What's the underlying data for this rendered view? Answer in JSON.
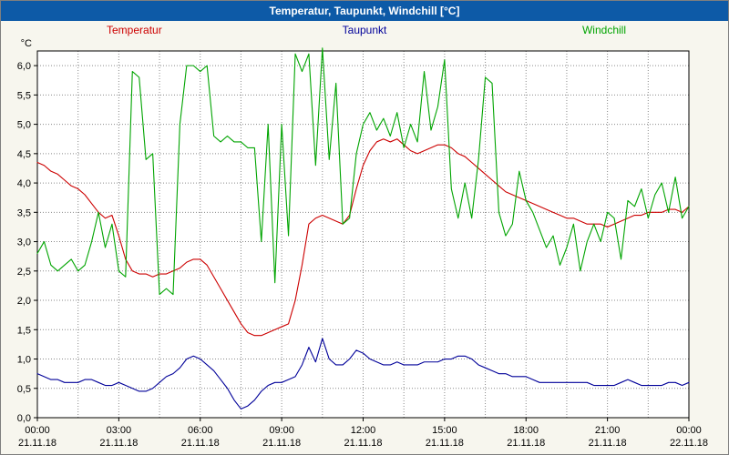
{
  "window": {
    "title": "Temperatur, Taupunkt, Windchill [°C]"
  },
  "chart_data": {
    "type": "line",
    "title": "Temperatur, Taupunkt, Windchill [°C]",
    "xlabel": "",
    "ylabel": "°C",
    "xlim": [
      0,
      24
    ],
    "ylim": [
      0,
      6.25
    ],
    "grid": "dotted",
    "legend_position": "top",
    "plot_bg": "#ffffff",
    "x_step_hours": 0.25,
    "y_ticks": [
      "0,0",
      "0,5",
      "1,0",
      "1,5",
      "2,0",
      "2,5",
      "3,0",
      "3,5",
      "4,0",
      "4,5",
      "5,0",
      "5,5",
      "6,0"
    ],
    "x_ticks": [
      {
        "time": "00:00",
        "date": "21.11.18"
      },
      {
        "time": "03:00",
        "date": "21.11.18"
      },
      {
        "time": "06:00",
        "date": "21.11.18"
      },
      {
        "time": "09:00",
        "date": "21.11.18"
      },
      {
        "time": "12:00",
        "date": "21.11.18"
      },
      {
        "time": "15:00",
        "date": "21.11.18"
      },
      {
        "time": "18:00",
        "date": "21.11.18"
      },
      {
        "time": "21:00",
        "date": "21.11.18"
      },
      {
        "time": "00:00",
        "date": "22.11.18"
      }
    ],
    "series": [
      {
        "name": "Temperatur",
        "color": "#cc0000",
        "values": [
          4.35,
          4.3,
          4.2,
          4.15,
          4.05,
          3.95,
          3.9,
          3.8,
          3.65,
          3.5,
          3.4,
          3.45,
          3.1,
          2.7,
          2.5,
          2.45,
          2.45,
          2.4,
          2.45,
          2.45,
          2.5,
          2.55,
          2.65,
          2.7,
          2.7,
          2.6,
          2.4,
          2.2,
          2.0,
          1.8,
          1.6,
          1.45,
          1.4,
          1.4,
          1.45,
          1.5,
          1.55,
          1.6,
          2.0,
          2.6,
          3.3,
          3.4,
          3.45,
          3.4,
          3.35,
          3.3,
          3.45,
          3.9,
          4.3,
          4.55,
          4.7,
          4.75,
          4.7,
          4.75,
          4.65,
          4.55,
          4.5,
          4.55,
          4.6,
          4.65,
          4.65,
          4.6,
          4.5,
          4.45,
          4.35,
          4.25,
          4.15,
          4.05,
          3.95,
          3.85,
          3.8,
          3.75,
          3.7,
          3.65,
          3.6,
          3.55,
          3.5,
          3.45,
          3.4,
          3.4,
          3.35,
          3.3,
          3.3,
          3.3,
          3.25,
          3.3,
          3.35,
          3.4,
          3.45,
          3.45,
          3.5,
          3.5,
          3.5,
          3.55,
          3.55,
          3.5,
          3.6
        ]
      },
      {
        "name": "Taupunkt",
        "color": "#000099",
        "values": [
          0.75,
          0.7,
          0.65,
          0.65,
          0.6,
          0.6,
          0.6,
          0.65,
          0.65,
          0.6,
          0.55,
          0.55,
          0.6,
          0.55,
          0.5,
          0.45,
          0.45,
          0.5,
          0.6,
          0.7,
          0.75,
          0.85,
          1.0,
          1.05,
          1.0,
          0.9,
          0.8,
          0.65,
          0.5,
          0.3,
          0.15,
          0.2,
          0.3,
          0.45,
          0.55,
          0.6,
          0.6,
          0.65,
          0.7,
          0.9,
          1.2,
          0.95,
          1.35,
          1.0,
          0.9,
          0.9,
          1.0,
          1.15,
          1.1,
          1.0,
          0.95,
          0.9,
          0.9,
          0.95,
          0.9,
          0.9,
          0.9,
          0.95,
          0.95,
          0.95,
          1.0,
          1.0,
          1.05,
          1.05,
          1.0,
          0.9,
          0.85,
          0.8,
          0.75,
          0.75,
          0.7,
          0.7,
          0.7,
          0.65,
          0.6,
          0.6,
          0.6,
          0.6,
          0.6,
          0.6,
          0.6,
          0.6,
          0.55,
          0.55,
          0.55,
          0.55,
          0.6,
          0.65,
          0.6,
          0.55,
          0.55,
          0.55,
          0.55,
          0.6,
          0.6,
          0.55,
          0.6
        ]
      },
      {
        "name": "Windchill",
        "color": "#00a400",
        "values": [
          2.8,
          3.0,
          2.6,
          2.5,
          2.6,
          2.7,
          2.5,
          2.6,
          3.0,
          3.5,
          2.9,
          3.3,
          2.5,
          2.4,
          5.9,
          5.8,
          4.4,
          4.5,
          2.1,
          2.2,
          2.1,
          5.0,
          6.0,
          6.0,
          5.9,
          6.0,
          4.8,
          4.7,
          4.8,
          4.7,
          4.7,
          4.6,
          4.6,
          3.0,
          5.0,
          2.3,
          5.0,
          3.1,
          6.2,
          5.9,
          6.2,
          4.3,
          6.3,
          4.4,
          5.7,
          3.3,
          3.4,
          4.5,
          5.0,
          5.2,
          4.9,
          5.1,
          4.8,
          5.2,
          4.6,
          5.0,
          4.7,
          5.9,
          4.9,
          5.3,
          6.1,
          3.9,
          3.4,
          4.0,
          3.4,
          4.4,
          5.8,
          5.7,
          3.5,
          3.1,
          3.3,
          4.2,
          3.7,
          3.5,
          3.2,
          2.9,
          3.1,
          2.6,
          2.9,
          3.3,
          2.5,
          3.0,
          3.3,
          3.0,
          3.5,
          3.4,
          2.7,
          3.7,
          3.6,
          3.9,
          3.4,
          3.8,
          4.0,
          3.5,
          4.1,
          3.4,
          3.6
        ]
      }
    ]
  }
}
